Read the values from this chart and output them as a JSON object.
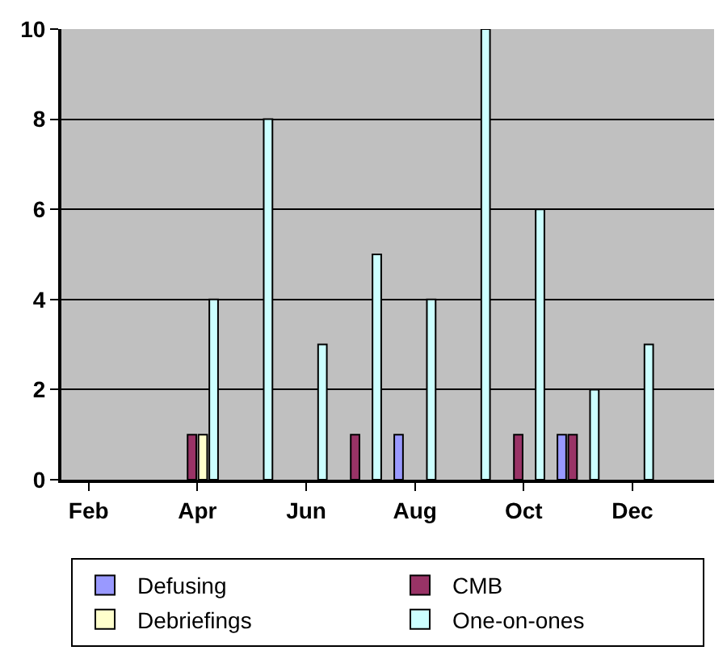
{
  "chart_data": {
    "type": "bar",
    "categories": [
      "Feb",
      null,
      "Apr",
      null,
      "Jun",
      null,
      "Aug",
      null,
      "Oct",
      null,
      "Dec",
      null
    ],
    "series": [
      {
        "name": "Defusing",
        "color": "#9999ff",
        "values": [
          null,
          null,
          null,
          null,
          null,
          null,
          1,
          null,
          null,
          1,
          null,
          null
        ]
      },
      {
        "name": "CMB",
        "color": "#993366",
        "values": [
          null,
          null,
          1,
          null,
          null,
          1,
          null,
          null,
          1,
          1,
          null,
          null
        ]
      },
      {
        "name": "Debriefings",
        "color": "#ffffcc",
        "values": [
          null,
          null,
          1,
          null,
          null,
          null,
          null,
          null,
          null,
          null,
          null,
          null
        ]
      },
      {
        "name": "One-on-ones",
        "color": "#ccffff",
        "values": [
          null,
          null,
          4,
          8,
          3,
          5,
          4,
          10,
          6,
          2,
          3,
          null
        ]
      }
    ],
    "ylim": [
      0,
      10
    ],
    "yticks": [
      0,
      2,
      4,
      6,
      8,
      10
    ],
    "grid": "y",
    "legend": "bottom"
  }
}
